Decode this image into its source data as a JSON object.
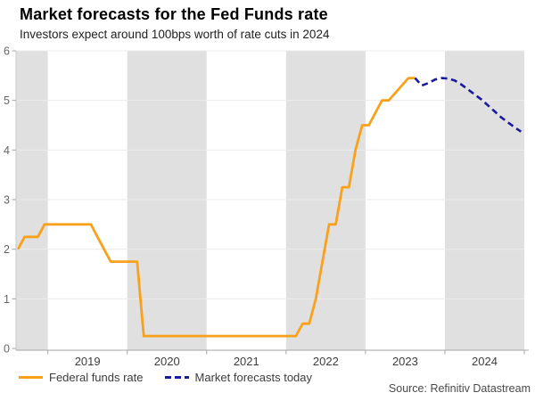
{
  "header": {
    "title": "Market forecasts for the Fed Funds rate",
    "subtitle": "Investors expect around 100bps worth of rate cuts in 2024"
  },
  "chart_data": {
    "type": "line",
    "title": "Market forecasts for the Fed Funds rate",
    "subtitle": "Investors expect around 100bps worth of rate cuts in 2024",
    "xlabel": "",
    "ylabel": "",
    "x_domain": [
      2018.6,
      2025.0
    ],
    "ylim": [
      0,
      6
    ],
    "y_ticks": [
      0,
      1,
      2,
      3,
      4,
      5,
      6
    ],
    "x_tick_label_years": [
      2019,
      2020,
      2021,
      2022,
      2023,
      2024
    ],
    "year_boundary_ticks": [
      2019,
      2020,
      2021,
      2022,
      2023,
      2024,
      2025
    ],
    "shaded_year_bands": [
      [
        2018.6,
        2019
      ],
      [
        2020,
        2021
      ],
      [
        2022,
        2023
      ],
      [
        2024,
        2025
      ]
    ],
    "grid": "horizontal",
    "legend_position": "bottom-left",
    "frequency": "monthly",
    "series": [
      {
        "name": "Federal funds rate",
        "style": "solid",
        "color": "#F9A11B",
        "start_year": 2018,
        "start_month": 8,
        "values": [
          2.0,
          2.25,
          2.25,
          2.25,
          2.5,
          2.5,
          2.5,
          2.5,
          2.5,
          2.5,
          2.5,
          2.5,
          2.25,
          2.0,
          1.75,
          1.75,
          1.75,
          1.75,
          1.75,
          0.25,
          0.25,
          0.25,
          0.25,
          0.25,
          0.25,
          0.25,
          0.25,
          0.25,
          0.25,
          0.25,
          0.25,
          0.25,
          0.25,
          0.25,
          0.25,
          0.25,
          0.25,
          0.25,
          0.25,
          0.25,
          0.25,
          0.25,
          0.25,
          0.5,
          0.5,
          1.0,
          1.75,
          2.5,
          2.5,
          3.25,
          3.25,
          4.0,
          4.5,
          4.5,
          4.75,
          5.0,
          5.0,
          5.15,
          5.3,
          5.45,
          5.45
        ]
      },
      {
        "name": "Market forecasts today",
        "style": "dashed",
        "color": "#1A1A9C",
        "start_year": 2023,
        "start_month": 8,
        "values": [
          5.45,
          5.3,
          5.35,
          5.42,
          5.45,
          5.44,
          5.4,
          5.32,
          5.22,
          5.12,
          5.02,
          4.9,
          4.78,
          4.66,
          4.56,
          4.46,
          4.37
        ]
      }
    ]
  },
  "source": {
    "text": "Source: Refinitiv Datastream"
  },
  "colors": {
    "band": "#E0E0E0",
    "grid": "#EBEBEB",
    "axis": "#A6A6A6",
    "y_axis_line": "#C9C9C9",
    "y_label": "#666666",
    "x_label": "#3d3d3d",
    "fed_line": "#F9A11B",
    "forecast_line": "#1A1A9C"
  }
}
